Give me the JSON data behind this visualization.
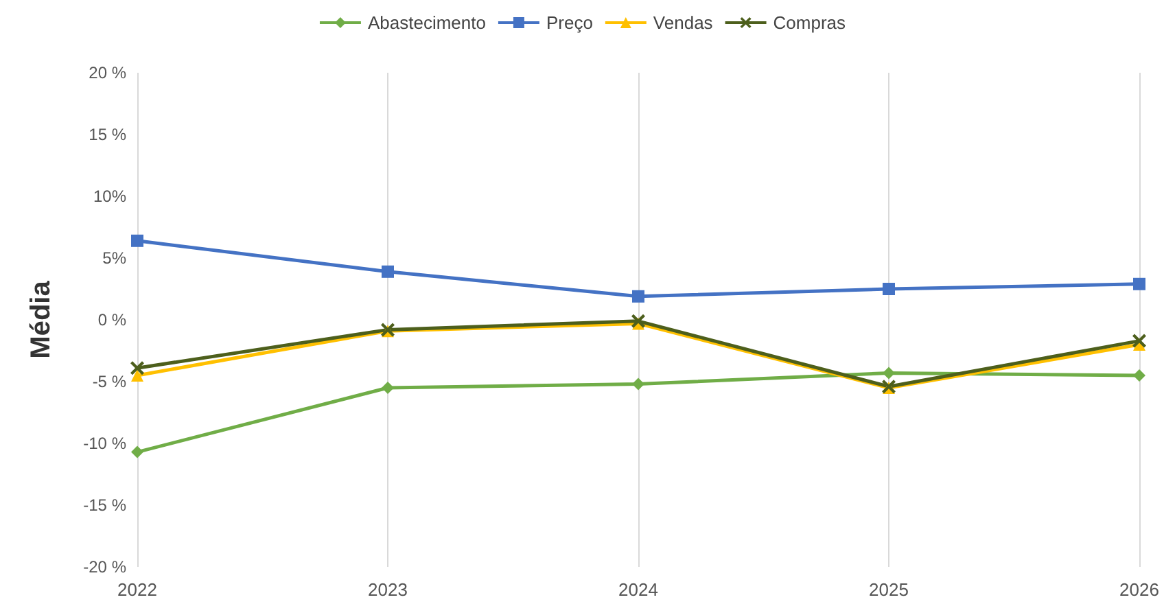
{
  "chart_data": {
    "type": "line",
    "ylabel": "Média",
    "x": [
      2022,
      2023,
      2024,
      2025,
      2026
    ],
    "xlim": [
      2022,
      2026
    ],
    "xticks": [
      2022,
      2023,
      2024,
      2025,
      2026
    ],
    "ylim": [
      -20,
      20
    ],
    "yticks": [
      {
        "value": -20,
        "label": "-20 %"
      },
      {
        "value": -15,
        "label": "-15 %"
      },
      {
        "value": -10,
        "label": "-10 %"
      },
      {
        "value": -5,
        "label": "-5 %"
      },
      {
        "value": 0,
        "label": "0 %"
      },
      {
        "value": 5,
        "label": "5%"
      },
      {
        "value": 10,
        "label": "10%"
      },
      {
        "value": 15,
        "label": "15 %"
      },
      {
        "value": 20,
        "label": "20 %"
      }
    ],
    "grid": "x",
    "legend": "top",
    "series": [
      {
        "name": "Abastecimento",
        "color": "#70ad47",
        "marker": "diamond",
        "values": [
          -10.7,
          -5.5,
          -5.2,
          -4.3,
          -4.5
        ]
      },
      {
        "name": "Preço",
        "color": "#4472c4",
        "marker": "square",
        "values": [
          6.4,
          3.9,
          1.9,
          2.5,
          2.9
        ]
      },
      {
        "name": "Vendas",
        "color": "#ffc000",
        "marker": "triangle",
        "values": [
          -4.5,
          -0.9,
          -0.3,
          -5.5,
          -2.0
        ]
      },
      {
        "name": "Compras",
        "color": "#4d5f1c",
        "marker": "cross",
        "values": [
          -3.9,
          -0.8,
          -0.1,
          -5.4,
          -1.7
        ]
      }
    ]
  }
}
